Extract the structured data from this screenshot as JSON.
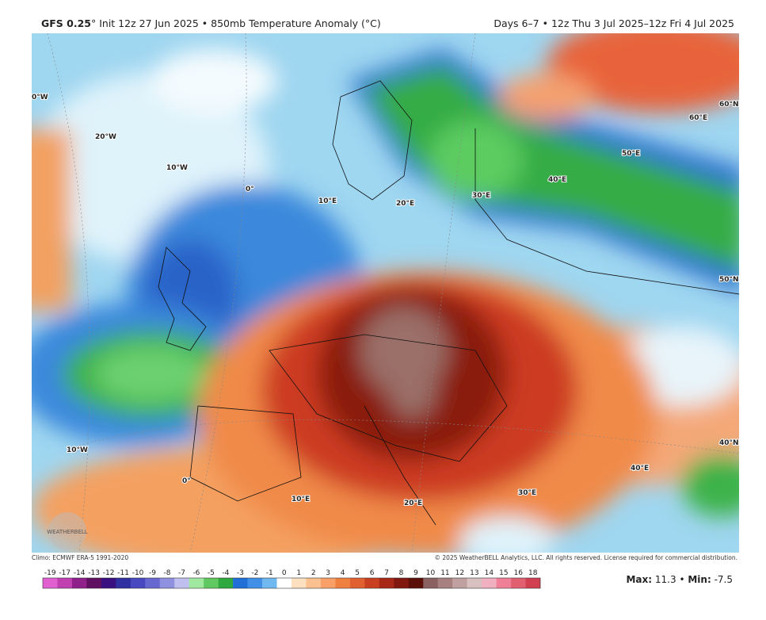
{
  "header": {
    "model": "GFS 0.25",
    "subtitle": "° Init 12z 27 Jun 2025 • 850mb Temperature Anomaly (°C)",
    "valid": "Days 6–7 • 12z Thu 3 Jul 2025–12z Fri 4 Jul 2025"
  },
  "map": {
    "labels": [
      "0°W",
      "20°W",
      "10°W",
      "0°",
      "10°E",
      "20°E",
      "30°E",
      "40°E",
      "50°E",
      "60°E",
      "60°N",
      "50°N",
      "40°N",
      "40°E",
      "30°E",
      "20°E",
      "10°E",
      "0°",
      "10°W"
    ],
    "logo": "WEATHERBELL"
  },
  "footer": {
    "climo": "Climo: ECMWF ERA-5 1991-2020",
    "copyright": "© 2025 WeatherBELL Analytics, LLC. All rights reserved. License required for commercial distribution.",
    "colorbar": {
      "ticks": [
        -19,
        -17,
        -14,
        -13,
        -12,
        -11,
        -10,
        -9,
        -8,
        -7,
        -6,
        -5,
        -4,
        -3,
        -2,
        -1,
        0,
        1,
        2,
        3,
        4,
        5,
        6,
        7,
        8,
        9,
        10,
        11,
        12,
        13,
        14,
        15,
        16,
        18
      ],
      "colors": [
        "#e060d0",
        "#c040b0",
        "#90208a",
        "#601060",
        "#3a1080",
        "#3030a0",
        "#4848c0",
        "#6868d0",
        "#9090e0",
        "#c0c0f0",
        "#a0e8a0",
        "#60c860",
        "#30a840",
        "#2070d8",
        "#4090e8",
        "#70b8f0",
        "#ffffff",
        "#fde0c0",
        "#fbc090",
        "#f8a068",
        "#f08040",
        "#e06030",
        "#c84020",
        "#a82818",
        "#801810",
        "#5a1008",
        "#8a6060",
        "#a88080",
        "#c0a0a0",
        "#d8c0c0",
        "#f0b0c0",
        "#f08098",
        "#e06070",
        "#d04050"
      ]
    },
    "max_label": "Max:",
    "max": 11.3,
    "separator": "•",
    "min_label": "Min:",
    "min": -7.5
  }
}
